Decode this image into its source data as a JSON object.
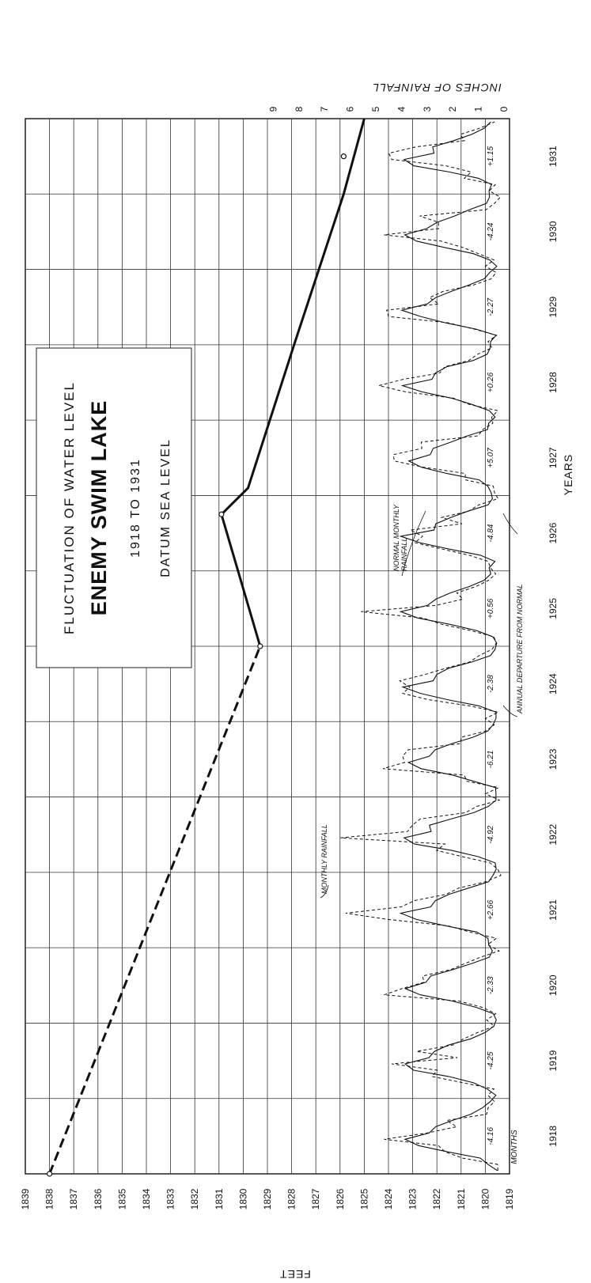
{
  "chart_data": {
    "type": "line",
    "title": "FLUCTUATION OF WATER LEVEL",
    "subtitle": "ENEMY SWIM LAKE",
    "period": "1918 TO 1931",
    "datum": "DATUM SEA LEVEL",
    "xlabel": "YEARS",
    "ylabel": "FEET",
    "y2label": "INCHES OF RAINFALL",
    "months_label": "MONTHS",
    "xlim": [
      1918,
      1932
    ],
    "ylim": [
      1819,
      1839
    ],
    "y2lim": [
      0,
      9
    ],
    "year_ticks": [
      "1918",
      "1919",
      "1920",
      "1921",
      "1922",
      "1923",
      "1924",
      "1925",
      "1926",
      "1927",
      "1928",
      "1929",
      "1930",
      "1931"
    ],
    "feet_ticks": [
      "1839",
      "1838",
      "1837",
      "1836",
      "1835",
      "1834",
      "1833",
      "1832",
      "1831",
      "1830",
      "1829",
      "1828",
      "1827",
      "1826",
      "1825",
      "1824",
      "1823",
      "1822",
      "1821",
      "1820",
      "1819"
    ],
    "rain_ticks": [
      "0",
      "1",
      "2",
      "3",
      "4",
      "5",
      "6",
      "7",
      "8",
      "9"
    ],
    "water_level": {
      "estimated": [
        {
          "x": 1918.0,
          "y": 1838.0
        },
        {
          "x": 1925.0,
          "y": 1829.3
        }
      ],
      "observed": [
        {
          "x": 1925.0,
          "y": 1829.3
        },
        {
          "x": 1926.75,
          "y": 1830.9
        },
        {
          "x": 1927.1,
          "y": 1829.8
        },
        {
          "x": 1929.0,
          "y": 1827.9
        },
        {
          "x": 1931.0,
          "y": 1825.85
        },
        {
          "x": 1932.0,
          "y": 1825.0
        }
      ],
      "markers": [
        {
          "x": 1918.0,
          "y": 1838.0
        },
        {
          "x": 1925.0,
          "y": 1829.3
        },
        {
          "x": 1926.75,
          "y": 1830.9
        },
        {
          "x": 1931.5,
          "y": 1825.85
        }
      ]
    },
    "monthly_rainfall_template": [
      0.6,
      0.5,
      1.3,
      2.2,
      3.6,
      4.2,
      3.1,
      2.8,
      2.3,
      1.3,
      0.8,
      0.4
    ],
    "normal_rainfall": [
      0.55,
      0.6,
      1.2,
      2.3,
      3.5,
      4.0,
      3.0,
      2.9,
      2.2,
      1.4,
      0.8,
      0.55
    ],
    "rain_peaks": [
      4.8,
      4.5,
      4.1,
      6.3,
      6.5,
      4.0,
      3.8,
      5.7,
      3.3,
      4.4,
      5.0,
      4.7,
      4.8,
      4.5
    ],
    "annual_departures": [
      {
        "year": "1918",
        "value": "-4.16"
      },
      {
        "year": "1919",
        "value": "-4.25"
      },
      {
        "year": "1920",
        "value": "-2.33"
      },
      {
        "year": "1921",
        "value": "+2.66"
      },
      {
        "year": "1922",
        "value": "-4.92"
      },
      {
        "year": "1923",
        "value": "-6.21"
      },
      {
        "year": "1924",
        "value": "-2.38"
      },
      {
        "year": "1925",
        "value": "+0.56"
      },
      {
        "year": "1926",
        "value": "-4.84"
      },
      {
        "year": "1927",
        "value": "+5.07"
      },
      {
        "year": "1928",
        "value": "+0.26"
      },
      {
        "year": "1929",
        "value": "-2.27"
      },
      {
        "year": "1930",
        "value": "-4.24"
      },
      {
        "year": "1931",
        "value": "+1.15"
      }
    ],
    "annotations": {
      "monthly": "MONTHLY RAINFALL",
      "normal_line1": "NORMAL MONTHLY",
      "normal_line2": "RAINFALL",
      "departure": "ANNUAL DEPARTURE FROM NORMAL"
    }
  }
}
